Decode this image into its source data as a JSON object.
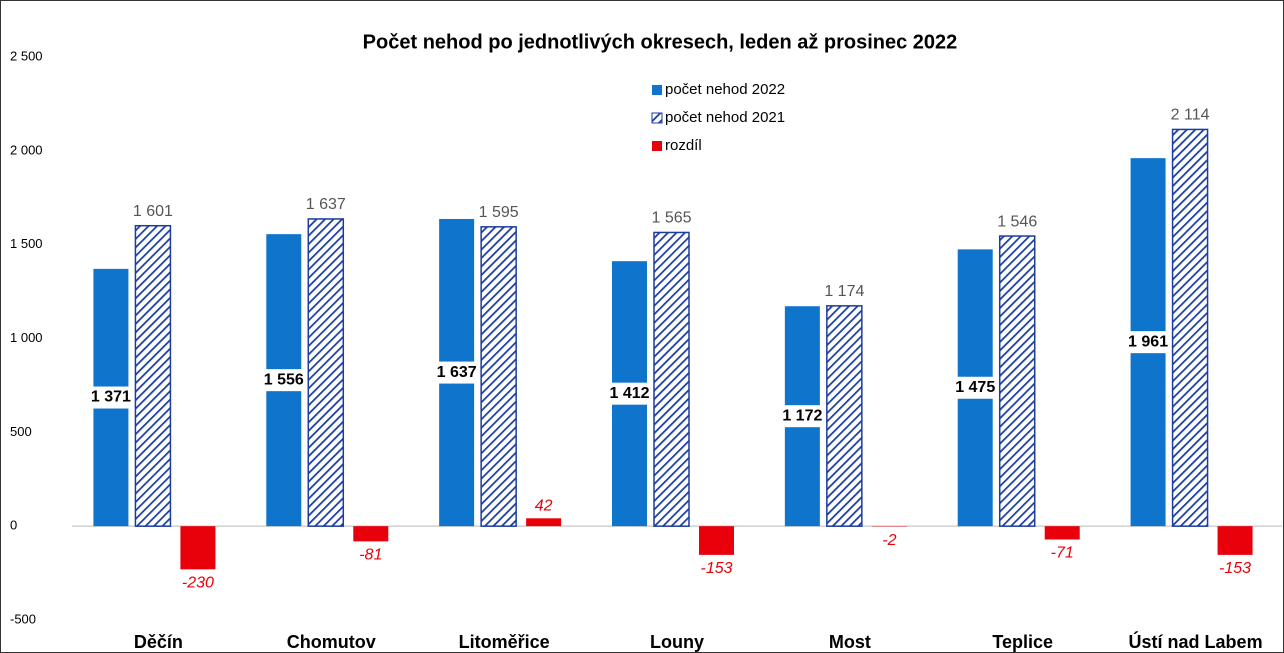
{
  "chart_data": {
    "type": "bar",
    "title": "Počet nehod po jednotlivých okresech, leden až prosinec 2022",
    "categories": [
      "Děčín",
      "Chomutov",
      "Litoměřice",
      "Louny",
      "Most",
      "Teplice",
      "Ústí nad Labem"
    ],
    "series": [
      {
        "name": "počet nehod 2022",
        "color": "#0f74cc",
        "values": [
          1371,
          1556,
          1637,
          1412,
          1172,
          1475,
          1961
        ],
        "value_labels": [
          "1 371",
          "1 556",
          "1 637",
          "1 412",
          "1 172",
          "1 475",
          "1 961"
        ]
      },
      {
        "name": "počet nehod 2021",
        "color": "#1a3d9e",
        "hatch": true,
        "values": [
          1601,
          1637,
          1595,
          1565,
          1174,
          1546,
          2114
        ],
        "value_labels": [
          "1 601",
          "1 637",
          "1 595",
          "1 565",
          "1 174",
          "1 546",
          "2 114"
        ]
      },
      {
        "name": "rozdíl",
        "color": "#e8000b",
        "values": [
          -230,
          -81,
          42,
          -153,
          -2,
          -71,
          -153
        ]
      }
    ],
    "ylim": [
      -500,
      2500
    ],
    "yticks": [
      -500,
      0,
      500,
      {
        "value": 1000,
        "label": "1 000"
      },
      {
        "value": 1500,
        "label": "1 500"
      },
      {
        "value": 2000,
        "label": "2 000"
      },
      {
        "value": 2500,
        "label": "2 500"
      }
    ],
    "grid": false
  }
}
